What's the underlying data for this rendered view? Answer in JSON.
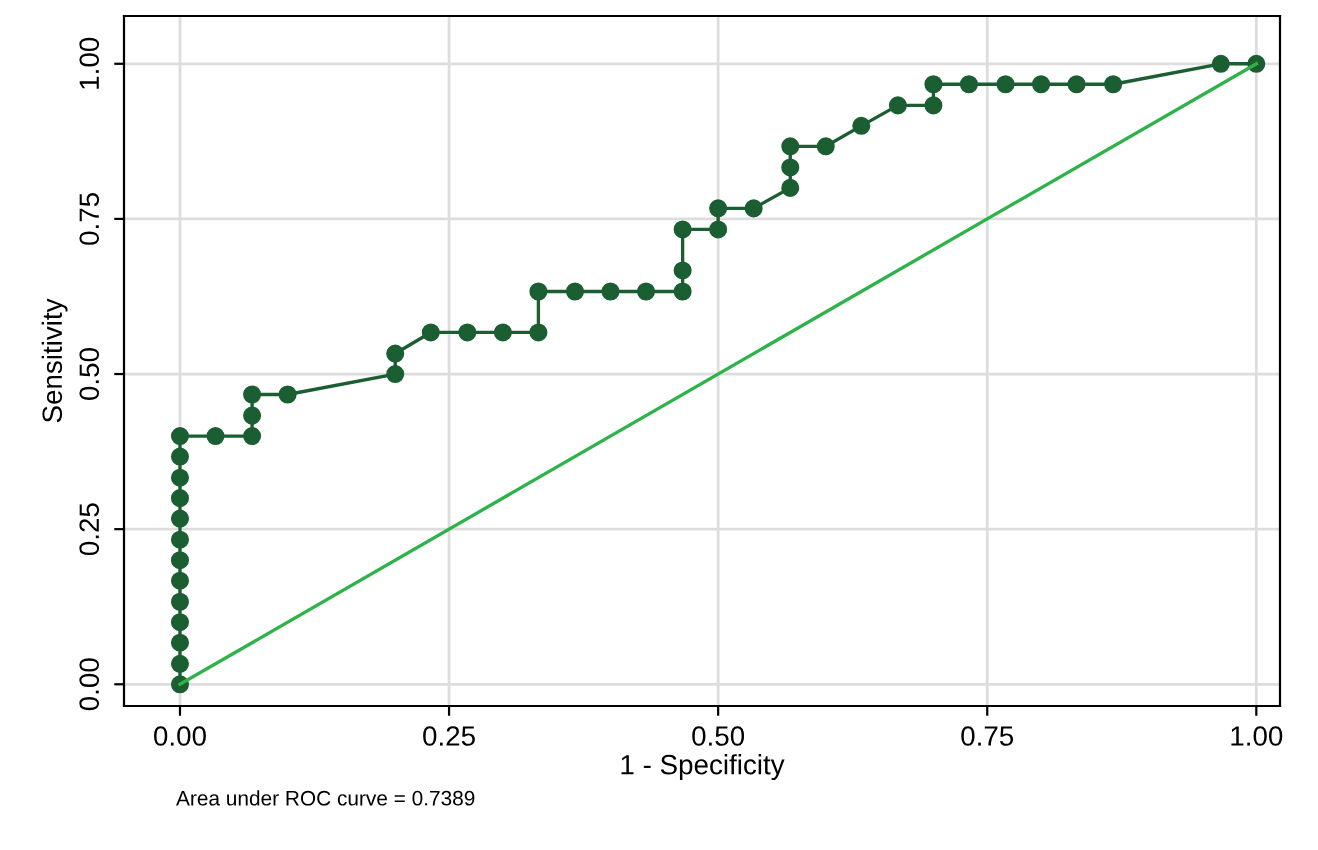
{
  "chart_data": {
    "type": "line",
    "xlabel": "1 - Specificity",
    "ylabel": "Sensitivity",
    "xlim": [
      -0.052,
      1.022
    ],
    "ylim": [
      -0.035,
      1.077
    ],
    "xticks": [
      {
        "value": 0,
        "label": "0.00"
      },
      {
        "value": 0.25,
        "label": "0.25"
      },
      {
        "value": 0.5,
        "label": "0.50"
      },
      {
        "value": 0.75,
        "label": "0.75"
      },
      {
        "value": 1,
        "label": "1.00"
      }
    ],
    "yticks": [
      {
        "value": 0,
        "label": "0.00"
      },
      {
        "value": 0.25,
        "label": "0.25"
      },
      {
        "value": 0.5,
        "label": "0.50"
      },
      {
        "value": 0.75,
        "label": "0.75"
      },
      {
        "value": 1,
        "label": "1.00"
      }
    ],
    "grid": true,
    "legend": false,
    "annotations": [
      "Area under ROC curve = 0.7389"
    ],
    "series": [
      {
        "color": "#1a5e32",
        "marker": "circle",
        "x": [
          0,
          0,
          0,
          0,
          0,
          0,
          0,
          0,
          0,
          0,
          0,
          0,
          0,
          0.033,
          0.067,
          0.067,
          0.067,
          0.1,
          0.2,
          0.2,
          0.233,
          0.267,
          0.3,
          0.333,
          0.333,
          0.367,
          0.4,
          0.433,
          0.467,
          0.467,
          0.467,
          0.5,
          0.5,
          0.533,
          0.567,
          0.567,
          0.567,
          0.6,
          0.633,
          0.667,
          0.7,
          0.7,
          0.733,
          0.767,
          0.8,
          0.833,
          0.867,
          0.967,
          1
        ],
        "values": [
          0,
          0.033,
          0.067,
          0.1,
          0.133,
          0.167,
          0.2,
          0.233,
          0.267,
          0.3,
          0.333,
          0.367,
          0.4,
          0.4,
          0.4,
          0.433,
          0.467,
          0.467,
          0.5,
          0.533,
          0.567,
          0.567,
          0.567,
          0.567,
          0.633,
          0.633,
          0.633,
          0.633,
          0.633,
          0.667,
          0.733,
          0.733,
          0.767,
          0.767,
          0.8,
          0.833,
          0.867,
          0.867,
          0.9,
          0.933,
          0.933,
          0.967,
          0.967,
          0.967,
          0.967,
          0.967,
          0.967,
          1,
          1
        ]
      },
      {
        "color": "#2db34a",
        "marker": "none",
        "x": [
          0,
          1
        ],
        "values": [
          0,
          1
        ]
      }
    ]
  }
}
